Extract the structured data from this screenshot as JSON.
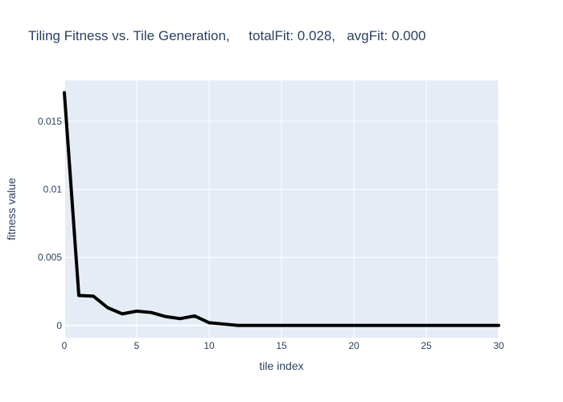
{
  "chart_data": {
    "type": "line",
    "title": "Tiling Fitness vs. Tile Generation,     totalFit: 0.028,   avgFit: 0.000",
    "xlabel": "tile index",
    "ylabel": "fitness value",
    "xlim": [
      0,
      30
    ],
    "ylim": [
      -0.0009,
      0.018
    ],
    "x_ticks": [
      0,
      5,
      10,
      15,
      20,
      25,
      30
    ],
    "x_tick_labels": [
      "0",
      "5",
      "10",
      "15",
      "20",
      "25",
      "30"
    ],
    "y_ticks": [
      0,
      0.005,
      0.01,
      0.015
    ],
    "y_tick_labels": [
      "0",
      "0.005",
      "0.01",
      "0.015"
    ],
    "grid": true,
    "colors": {
      "plot_bg": "#e5ecf6",
      "grid": "#ffffff",
      "line": "#000000",
      "text": "#2a3f5f"
    },
    "series": [
      {
        "x": [
          0,
          1,
          2,
          3,
          4,
          5,
          6,
          7,
          8,
          9,
          10,
          11,
          12,
          13,
          14,
          15,
          16,
          17,
          18,
          19,
          20,
          21,
          22,
          23,
          24,
          25,
          26,
          27,
          28,
          29,
          30
        ],
        "values": [
          0.0171,
          0.0022,
          0.00215,
          0.0013,
          0.00085,
          0.00105,
          0.00095,
          0.00065,
          0.0005,
          0.0007,
          0.0002,
          0.0001,
          0,
          0,
          0,
          0,
          0,
          0,
          0,
          0,
          0,
          0,
          0,
          0,
          0,
          0,
          0,
          0,
          0,
          0,
          0
        ]
      }
    ]
  }
}
